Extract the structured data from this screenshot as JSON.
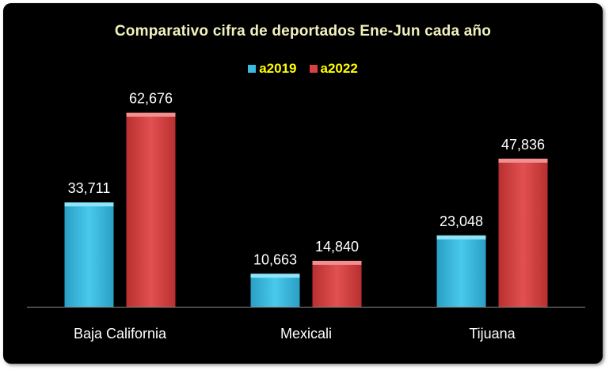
{
  "chart_data": {
    "type": "bar",
    "title": "Comparativo cifra de deportados Ene-Jun cada año",
    "categories": [
      "Baja California",
      "Mexicali",
      "Tijuana"
    ],
    "series": [
      {
        "name": "a2019",
        "values": [
          33711,
          10663,
          23048
        ],
        "labels": [
          "33,711",
          "10,663",
          "23,048"
        ],
        "color": "#38bde0"
      },
      {
        "name": "a2022",
        "values": [
          62676,
          14840,
          47836
        ],
        "labels": [
          "62,676",
          "14,840",
          "47,836"
        ],
        "color": "#d94040"
      }
    ],
    "ylim": [
      0,
      70000
    ],
    "grid": false,
    "legend_position": "top",
    "colors": {
      "background": "#000000",
      "title": "#f2f2c0",
      "legend_text": "#ffff00",
      "labels": "#ffffff"
    }
  }
}
